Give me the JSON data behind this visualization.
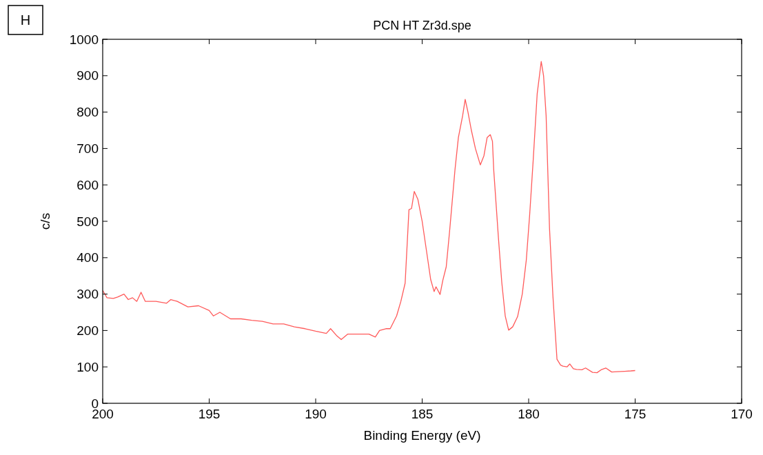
{
  "chart_data": {
    "type": "line",
    "title": "PCN HT Zr3d.spe",
    "xlabel": "Binding Energy (eV)",
    "ylabel": "c/s",
    "annotations": [
      "H"
    ],
    "xlim": [
      200,
      170
    ],
    "xticks": [
      200,
      195,
      190,
      185,
      180,
      175,
      170
    ],
    "ylim": [
      0,
      1000
    ],
    "yticks": [
      0,
      100,
      200,
      300,
      400,
      500,
      600,
      700,
      800,
      900,
      1000
    ],
    "marker": "none",
    "line_style": "solid",
    "series": [
      {
        "color": "#ff5a5a",
        "x": [
          200,
          199.8,
          199.5,
          199.3,
          199,
          198.8,
          198.6,
          198.4,
          198.2,
          198,
          197.5,
          197,
          196.8,
          196.5,
          196,
          195.5,
          195,
          194.8,
          194.5,
          194,
          193.5,
          193,
          192.5,
          192,
          191.5,
          191,
          190.5,
          190,
          189.5,
          189.3,
          189,
          188.8,
          188.5,
          188,
          187.5,
          187.2,
          187,
          186.7,
          186.5,
          186.2,
          186,
          185.8,
          185.62,
          185.5,
          185.37,
          185.2,
          185,
          184.8,
          184.6,
          184.44,
          184.35,
          184.16,
          184.03,
          183.87,
          183.71,
          183.46,
          183.3,
          183.1,
          182.98,
          182.85,
          182.69,
          182.5,
          182.27,
          182.1,
          181.95,
          181.8,
          181.7,
          181.64,
          181.42,
          181.26,
          181.1,
          180.94,
          180.75,
          180.52,
          180.3,
          180.11,
          179.95,
          179.79,
          179.6,
          179.41,
          179.3,
          179.18,
          179.02,
          178.86,
          178.67,
          178.5,
          178.39,
          178.2,
          178.07,
          177.9,
          177.75,
          177.5,
          177.33,
          177,
          176.79,
          176.6,
          176.38,
          176.1,
          175.84,
          175.5,
          175.2,
          175
        ],
        "values": [
          310,
          290,
          288,
          292,
          300,
          285,
          290,
          280,
          305,
          280,
          280,
          275,
          285,
          280,
          265,
          268,
          255,
          240,
          250,
          232,
          232,
          228,
          225,
          218,
          218,
          210,
          205,
          198,
          192,
          205,
          185,
          175,
          190,
          190,
          190,
          182,
          200,
          205,
          205,
          240,
          280,
          330,
          532,
          535,
          582,
          560,
          500,
          420,
          340,
          307,
          320,
          299,
          338,
          375,
          474,
          641,
          730,
          790,
          835,
          800,
          750,
          700,
          655,
          680,
          730,
          738,
          720,
          641,
          455,
          331,
          240,
          201,
          210,
          238,
          300,
          394,
          520,
          665,
          850,
          939,
          900,
          790,
          480,
          294,
          121,
          105,
          102,
          100,
          108,
          95,
          93,
          92,
          97,
          85,
          84,
          92,
          97,
          86,
          87,
          88,
          89,
          90
        ]
      }
    ]
  }
}
